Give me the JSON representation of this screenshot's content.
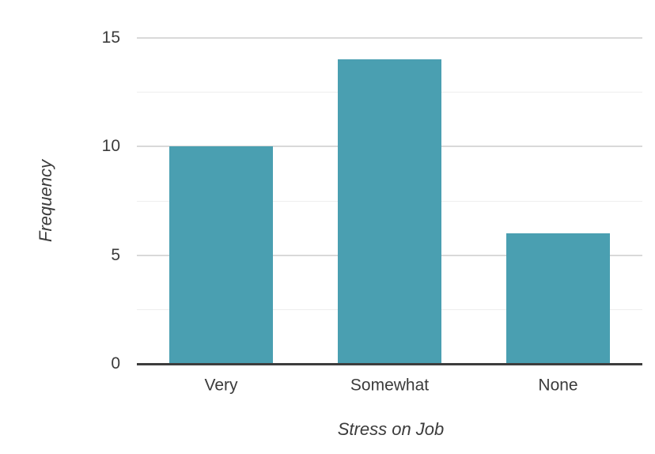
{
  "chart_data": {
    "type": "bar",
    "categories": [
      "Very",
      "Somewhat",
      "None"
    ],
    "values": [
      10,
      14,
      6
    ],
    "title": "",
    "xlabel": "Stress on Job",
    "ylabel": "Frequency",
    "ylim": [
      0,
      15
    ],
    "yticks": [
      0,
      5,
      10,
      15
    ],
    "minor_gridlines": [
      2.5,
      7.5,
      12.5
    ],
    "grid": true,
    "legend": false,
    "colors": {
      "bar": "#4a9fb1",
      "axis_line": "#3d3d3d",
      "major_grid": "#d9d9d9",
      "minor_grid": "#eeeeee",
      "text": "#3b3b3b",
      "background": "#ffffff"
    }
  }
}
